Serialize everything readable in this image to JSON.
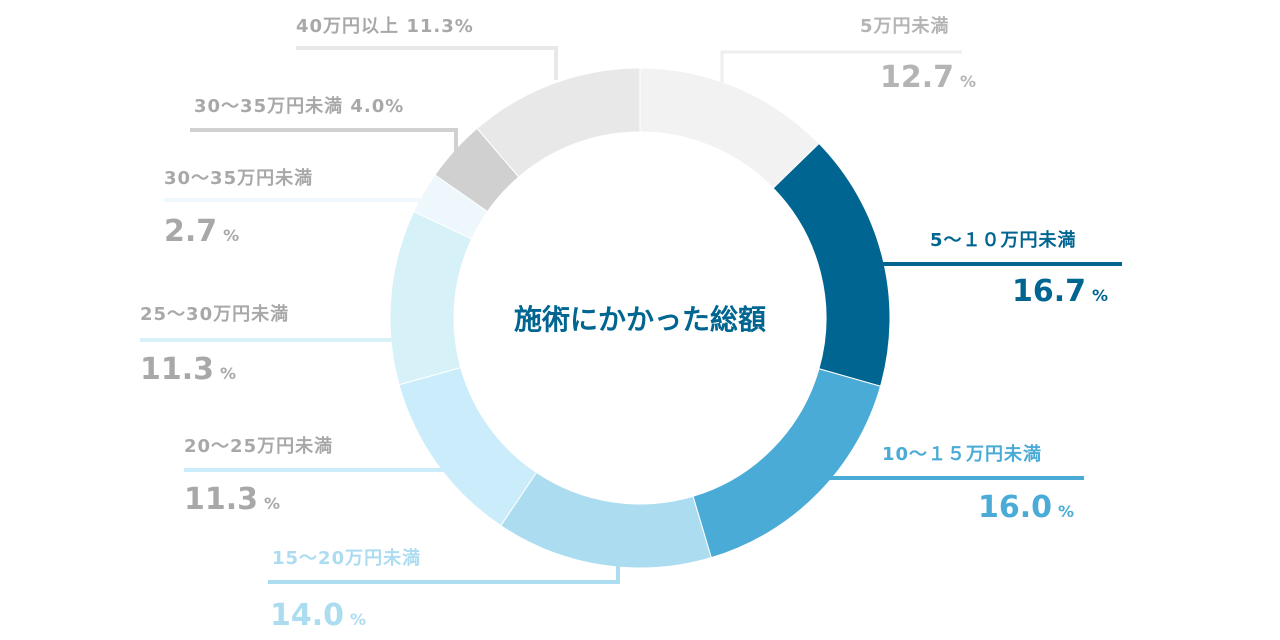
{
  "chart_data": {
    "type": "pie",
    "title": "施術にかかった総額",
    "unit": "%",
    "slices": [
      {
        "label": "5万円未満",
        "value": 12.7,
        "value_text": "12.7",
        "color": "#f2f2f2",
        "text_color": "#b4b4b4"
      },
      {
        "label": "5～１０万円未満",
        "value": 16.7,
        "value_text": "16.7",
        "color": "#006590",
        "text_color": "#006590"
      },
      {
        "label": "10～１５万円未満",
        "value": 16.0,
        "value_text": "16.0",
        "color": "#4aabd6",
        "text_color": "#4aabd6"
      },
      {
        "label": "15～20万円未満",
        "value": 14.0,
        "value_text": "14.0",
        "color": "#acdcf0",
        "text_color": "#acdcf0"
      },
      {
        "label": "20～25万円未満",
        "value": 11.3,
        "value_text": "11.3",
        "color": "#cbecfb",
        "text_color": "#a8a8a8"
      },
      {
        "label": "25～30万円未満",
        "value": 11.3,
        "value_text": "11.3",
        "color": "#d6f2f8",
        "text_color": "#a8a8a8"
      },
      {
        "label": "30～35万円未満",
        "value": 2.7,
        "value_text": "2.7",
        "color": "#eef8fc",
        "text_color": "#a8a8a8"
      },
      {
        "label": "30～35万円未満",
        "value": 4.0,
        "value_text": "4.0",
        "color": "#d0d0d0",
        "text_color": "#a8a8a8"
      },
      {
        "label": "40万円以上",
        "value": 11.3,
        "value_text": "11.3",
        "color": "#e8e8e8",
        "text_color": "#a8a8a8"
      }
    ],
    "title_color": "#006590"
  }
}
